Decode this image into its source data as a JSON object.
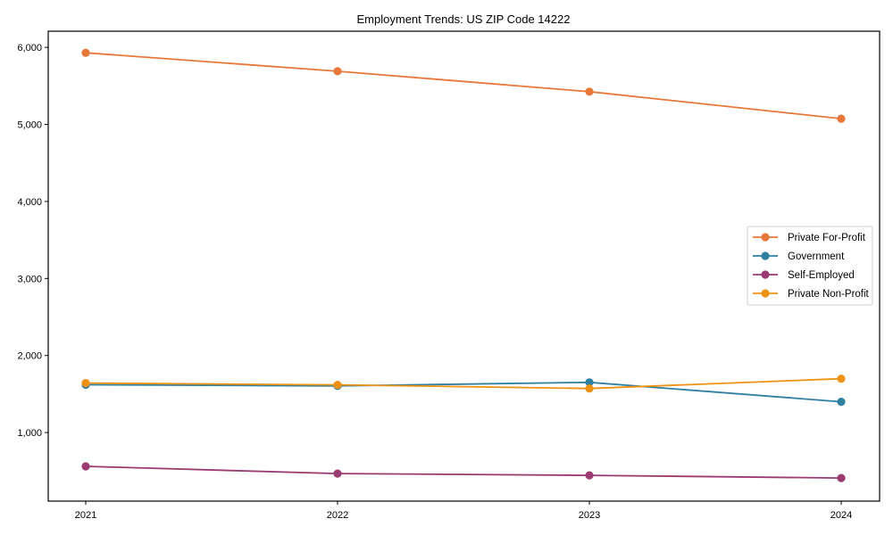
{
  "chart_data": {
    "type": "line",
    "title": "Employment Trends: US ZIP Code 14222",
    "xlabel": "",
    "ylabel": "",
    "x": [
      "2021",
      "2022",
      "2023",
      "2024"
    ],
    "categories": [
      "2021",
      "2022",
      "2023",
      "2024"
    ],
    "yticks": [
      1000,
      2000,
      3000,
      4000,
      5000,
      6000
    ],
    "ytick_labels": [
      "1,000",
      "2,000",
      "3,000",
      "4,000",
      "5,000",
      "6,000"
    ],
    "ylim": [
      110,
      6210
    ],
    "grid": false,
    "legend_position": "center right",
    "series": [
      {
        "name": "Private For-Profit",
        "color": "#e8773a",
        "values": [
          5930,
          5690,
          5425,
          5075
        ]
      },
      {
        "name": "Government",
        "color": "#2e7fa0",
        "values": [
          1620,
          1605,
          1652,
          1400
        ]
      },
      {
        "name": "Self-Employed",
        "color": "#9c3a72",
        "values": [
          562,
          468,
          445,
          410
        ]
      },
      {
        "name": "Private Non-Profit",
        "color": "#ee9213",
        "values": [
          1642,
          1619,
          1572,
          1699
        ]
      }
    ]
  }
}
